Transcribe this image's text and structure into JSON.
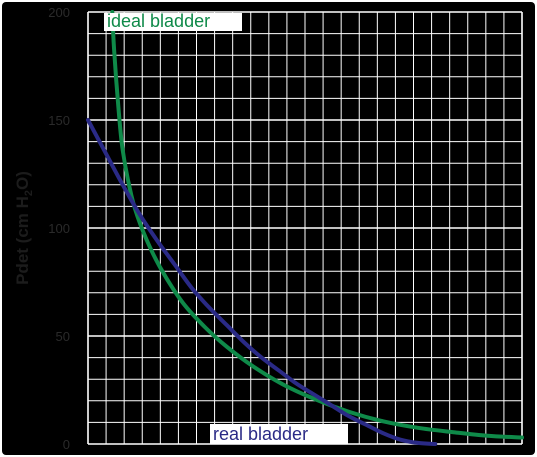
{
  "chart_data": {
    "type": "line",
    "title": "",
    "xlabel": "",
    "ylabel_parts": [
      "Pdet (cm H",
      "2",
      "O)"
    ],
    "xlim": [
      0,
      100
    ],
    "ylim": [
      0,
      200
    ],
    "y_ticks": [
      "0",
      "50",
      "100",
      "150",
      "200"
    ],
    "grid": true,
    "grid_minor_y_step": 10,
    "grid_minor_x_divisions": 24,
    "colors": {
      "background": "#000000",
      "grid": "#ffffff",
      "ideal": "#0f8a49",
      "real": "#2a2a86"
    },
    "series": [
      {
        "name": "ideal bladder",
        "x": [
          5.6,
          6,
          7,
          8,
          10,
          12,
          15,
          18,
          22,
          27,
          32,
          38,
          45,
          52,
          60,
          68,
          76,
          84,
          92,
          100
        ],
        "y": [
          200,
          183,
          156,
          136,
          115,
          102,
          88,
          77,
          65,
          54,
          45,
          36,
          27.5,
          21,
          15,
          10.5,
          7.5,
          5.5,
          3.8,
          3
        ]
      },
      {
        "name": "real bladder",
        "x": [
          0,
          4,
          8,
          12,
          16,
          20,
          24,
          28,
          32,
          36,
          40,
          44,
          48,
          52,
          56,
          60,
          64,
          68,
          72,
          76,
          80
        ],
        "y": [
          150,
          135,
          120,
          106,
          94,
          83,
          72,
          63,
          55,
          47,
          40,
          34,
          28,
          23,
          18,
          13,
          9,
          5,
          2,
          0.5,
          0
        ]
      }
    ]
  }
}
